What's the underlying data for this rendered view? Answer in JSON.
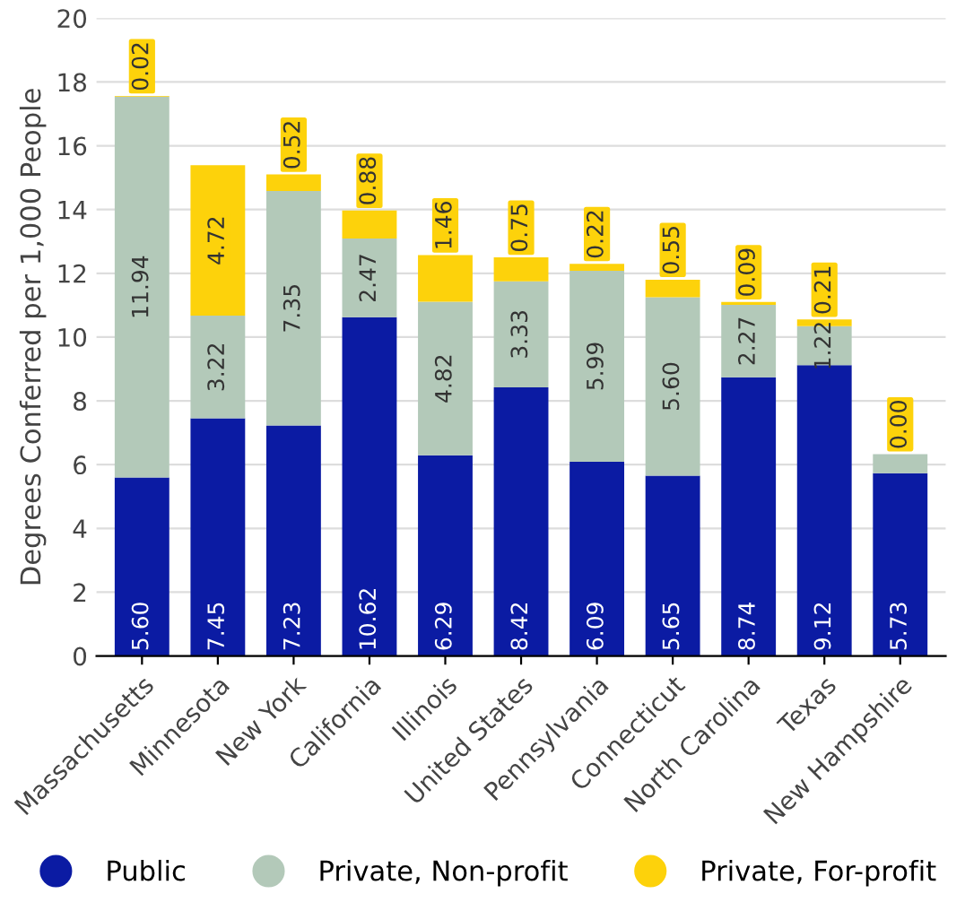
{
  "chart_data": {
    "type": "bar",
    "stacked": true,
    "ylabel": "Degrees Conferred per 1,000 People",
    "categories": [
      "Massachusetts",
      "Minnesota",
      "New York",
      "California",
      "Illinois",
      "United States",
      "Pennsylvania",
      "Connecticut",
      "North Carolina",
      "Texas",
      "New Hampshire"
    ],
    "series": [
      {
        "name": "Public",
        "color": "#0b1ba3",
        "values": [
          5.6,
          7.45,
          7.23,
          10.62,
          6.29,
          8.42,
          6.09,
          5.65,
          8.74,
          9.12,
          5.73
        ],
        "value_labels": [
          "5.60",
          "7.45",
          "7.23",
          "10.62",
          "6.29",
          "8.42",
          "6.09",
          "5.65",
          "8.74",
          "9.12",
          "5.73"
        ]
      },
      {
        "name": "Private, Non-profit",
        "color": "#b3c9b9",
        "values": [
          11.94,
          3.22,
          7.35,
          2.47,
          4.82,
          3.33,
          5.99,
          5.6,
          2.27,
          1.22,
          0.6
        ],
        "value_labels": [
          "11.94",
          "3.22",
          "7.35",
          "2.47",
          "4.82",
          "3.33",
          "5.99",
          "5.60",
          "2.27",
          "1.22",
          null
        ]
      },
      {
        "name": "Private, For-profit",
        "color": "#fdd20b",
        "values": [
          0.02,
          4.72,
          0.52,
          0.88,
          1.46,
          0.75,
          0.22,
          0.55,
          0.09,
          0.21,
          0.0
        ],
        "value_labels": [
          "0.02",
          "4.72",
          "0.52",
          "0.88",
          "1.46",
          "0.75",
          "0.22",
          "0.55",
          "0.09",
          "0.21",
          "0.00"
        ]
      }
    ],
    "ylim": [
      0,
      20
    ],
    "yticks": [
      0,
      2,
      4,
      6,
      8,
      10,
      12,
      14,
      16,
      18,
      20
    ],
    "grid": "y",
    "legend": "bottom",
    "marker": "circle"
  }
}
